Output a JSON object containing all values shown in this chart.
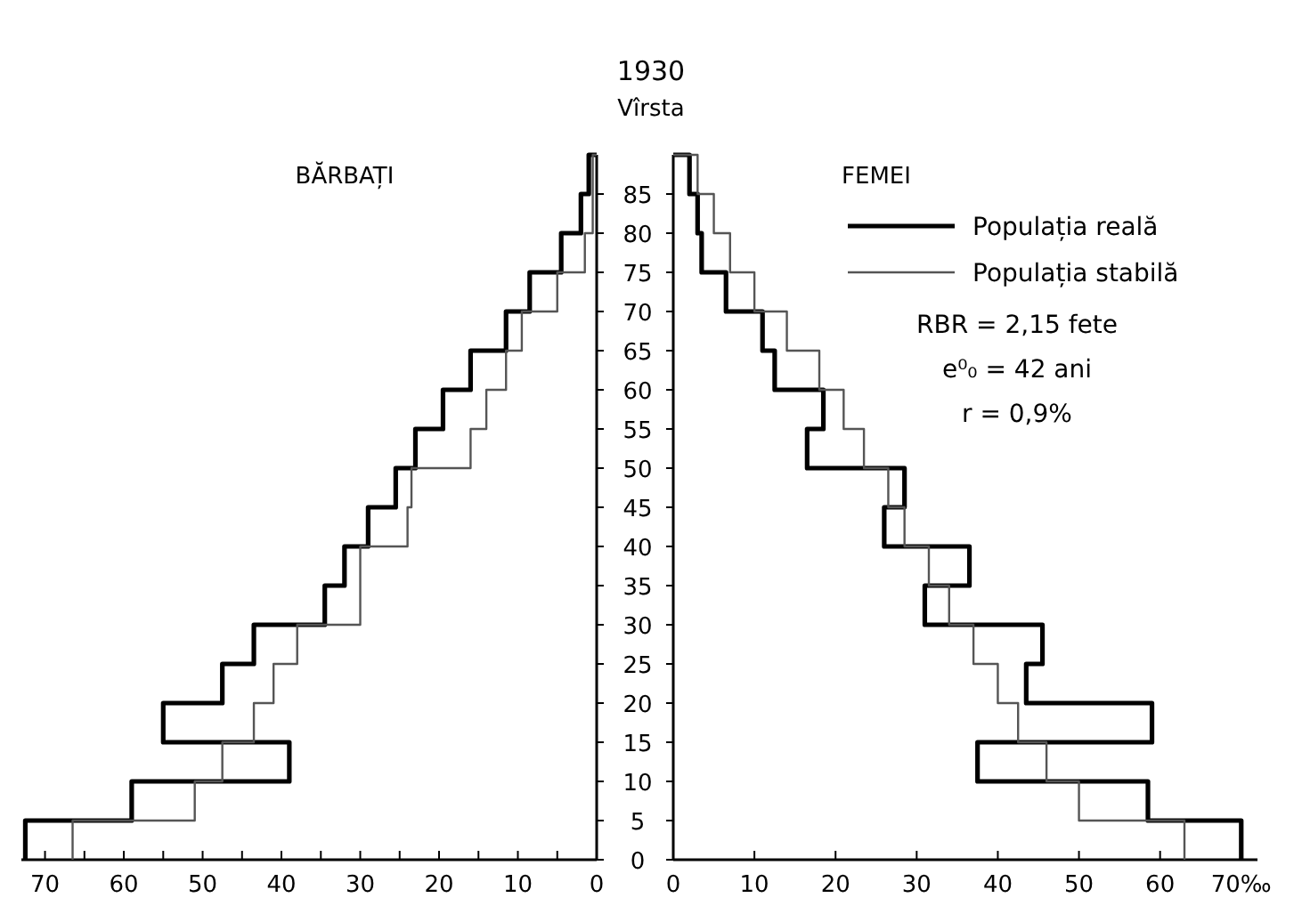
{
  "chart_data": [
    {
      "type": "histogram",
      "orientation": "horizontal",
      "title": "BĂRBAȚI",
      "ylabel": "Vîrsta",
      "annotations": [
        "1930"
      ],
      "bins": [
        0,
        5,
        10,
        15,
        20,
        25,
        30,
        35,
        40,
        45,
        50,
        55,
        60,
        65,
        70,
        75,
        80,
        85,
        90
      ],
      "xlim": [
        73,
        0
      ],
      "xticks": [
        70,
        {
          "value": 65,
          "label": null
        },
        60,
        {
          "value": 55,
          "label": null
        },
        50,
        {
          "value": 45,
          "label": null
        },
        40,
        {
          "value": 35,
          "label": null
        },
        30,
        {
          "value": 25,
          "label": null
        },
        20,
        {
          "value": 15,
          "label": null
        },
        10,
        {
          "value": 5,
          "label": null
        },
        0
      ],
      "ylim": [
        0,
        90
      ],
      "yticks": [
        0,
        5,
        10,
        15,
        20,
        25,
        30,
        35,
        40,
        45,
        50,
        55,
        60,
        65,
        70,
        75,
        80,
        85
      ],
      "tick_labels": "x",
      "legend": false,
      "series": [
        {
          "color": "#000000",
          "values": [
            72.5,
            59,
            39,
            55,
            47.5,
            43.5,
            34.5,
            32,
            29,
            25.5,
            23,
            19.5,
            16,
            11.5,
            8.5,
            4.5,
            2,
            1
          ]
        },
        {
          "color": "#555555",
          "values": [
            66.5,
            51,
            47.5,
            43.5,
            41,
            38,
            30,
            30,
            24,
            23.5,
            16,
            14,
            11.5,
            9.5,
            5,
            1.5,
            0.5,
            0.5
          ]
        }
      ]
    },
    {
      "type": "histogram",
      "orientation": "horizontal",
      "title": "FEMEI",
      "annotations": [
        "RBR = 2,15 fete",
        "e⁰₀ = 42 ani",
        "r = 0,9%"
      ],
      "bins": [
        0,
        5,
        10,
        15,
        20,
        25,
        30,
        35,
        40,
        45,
        50,
        55,
        60,
        65,
        70,
        75,
        80,
        85,
        90
      ],
      "xlim": [
        0,
        72
      ],
      "xticks": [
        0,
        10,
        20,
        30,
        40,
        50,
        60,
        {
          "value": 70,
          "label": "70‰"
        }
      ],
      "ylim": [
        0,
        90
      ],
      "yticks": [
        0,
        5,
        10,
        15,
        20,
        25,
        30,
        35,
        40,
        45,
        50,
        55,
        60,
        65,
        70,
        75,
        80,
        85
      ],
      "legend": "top right",
      "series": [
        {
          "name": "Populația reală",
          "color": "#000000",
          "values": [
            70,
            58.5,
            37.5,
            59,
            43.5,
            45.5,
            31,
            36.5,
            26,
            28.5,
            16.5,
            18.5,
            12.5,
            11,
            6.5,
            3.5,
            3,
            2
          ]
        },
        {
          "name": "Populația stabilă",
          "color": "#555555",
          "values": [
            63,
            50,
            46,
            42.5,
            40,
            37,
            34,
            31.5,
            28.5,
            26.5,
            23.5,
            21,
            18,
            14,
            10,
            7,
            5,
            3
          ]
        }
      ]
    }
  ]
}
